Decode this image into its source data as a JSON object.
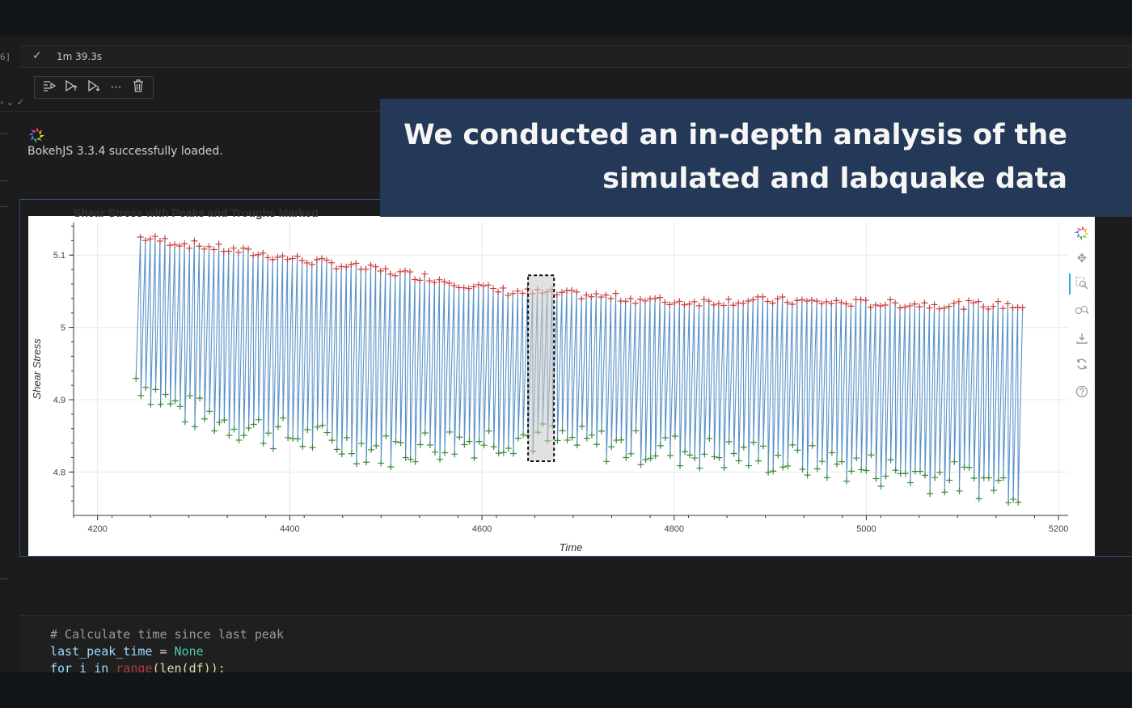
{
  "notebook": {
    "exec_count_label": "6]",
    "exec_time": "1m 39.3s",
    "toolbar_icons": [
      "run-by-line-icon",
      "execute-above-icon",
      "execute-below-icon",
      "more-icon",
      "delete-icon"
    ],
    "bokeh_msg": "BokehJS 3.3.4 successfully loaded."
  },
  "caption": {
    "line1": "We conducted an in-depth analysis of the",
    "line2": "simulated and labquake data"
  },
  "chart_data": {
    "type": "line",
    "title": "Shear Stress with Peaks and Troughs Marked",
    "xlabel": "Time",
    "ylabel": "Shear Stress",
    "xlim": [
      4175,
      5210
    ],
    "ylim": [
      4.74,
      5.145
    ],
    "xticks": [
      "4200",
      "4400",
      "4600",
      "4800",
      "5000",
      "5200"
    ],
    "yticks": [
      "4.8",
      "4.9",
      "5",
      "5.1"
    ],
    "grid": true,
    "x_start": 4240,
    "x_end": 5160,
    "cycle_period": 5.1,
    "peak_trend": [
      [
        4240,
        5.125
      ],
      [
        4540,
        5.07
      ],
      [
        4620,
        5.05
      ],
      [
        4700,
        5.045
      ],
      [
        4800,
        5.035
      ],
      [
        4900,
        5.037
      ],
      [
        5000,
        5.033
      ],
      [
        5160,
        5.03
      ]
    ],
    "trough_trend": [
      [
        4240,
        4.93
      ],
      [
        4280,
        4.89
      ],
      [
        4330,
        4.87
      ],
      [
        4400,
        4.85
      ],
      [
        4500,
        4.83
      ],
      [
        4560,
        4.84
      ],
      [
        4640,
        4.85
      ],
      [
        4700,
        4.84
      ],
      [
        4800,
        4.83
      ],
      [
        4900,
        4.82
      ],
      [
        5000,
        4.805
      ],
      [
        5100,
        4.79
      ],
      [
        5160,
        4.78
      ]
    ],
    "series": [
      {
        "name": "",
        "color": "#5b93c8"
      },
      {
        "name": "",
        "color": "#c84040"
      },
      {
        "name": "",
        "color": "#3a8a3a"
      }
    ],
    "selection_box": {
      "x": [
        4648,
        4675
      ],
      "y": [
        4.815,
        5.072
      ]
    }
  },
  "code": {
    "line1": "# Calculate time since last peak",
    "line2_var": "last_peak_time",
    "line2_op": " = ",
    "line2_val": "None",
    "line3_kw": "for",
    "line3_mid": " i ",
    "line3_in": "in",
    "line3_fn": "range",
    "line3_rest": "(len(df)):"
  }
}
